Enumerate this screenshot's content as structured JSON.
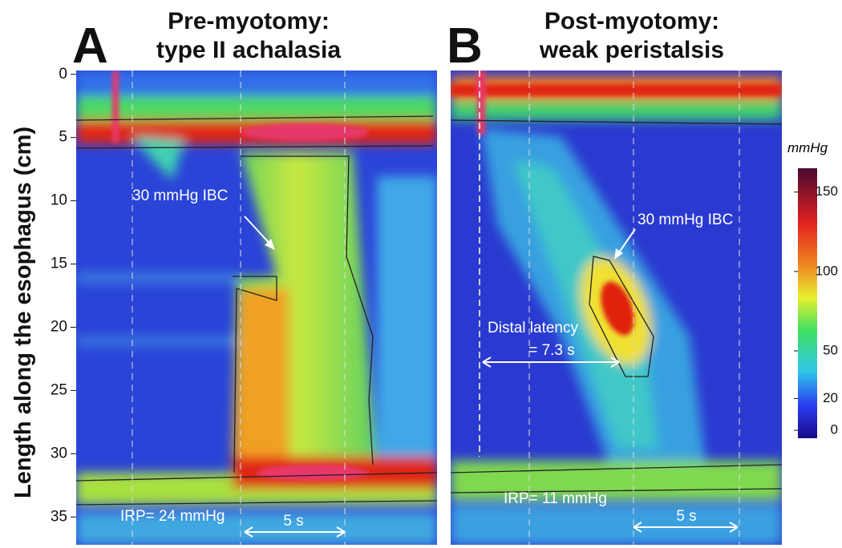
{
  "figure": {
    "y_axis": {
      "label": "Length along the esophagus (cm)",
      "lim": [
        -0.3,
        37.2
      ],
      "ticks": [
        0,
        5,
        10,
        15,
        20,
        25,
        30,
        35
      ]
    },
    "panels": [
      {
        "letter": "A",
        "title": [
          "Pre-myotomy:",
          "type II achalasia"
        ],
        "annotations": [
          "30 mmHg IBC",
          "IRP= 24 mmHg",
          "5 s"
        ]
      },
      {
        "letter": "B",
        "title": [
          "Post-myotomy:",
          "weak peristalsis"
        ],
        "annotations": [
          "30 mmHg IBC",
          "Distal latency",
          "= 7.3 s",
          "IRP= 11 mmHg",
          "5 s"
        ]
      }
    ],
    "colorbar": {
      "label": "mmHg",
      "lim": [
        -5,
        165
      ],
      "ticks": [
        0,
        20,
        50,
        100,
        150
      ]
    }
  }
}
